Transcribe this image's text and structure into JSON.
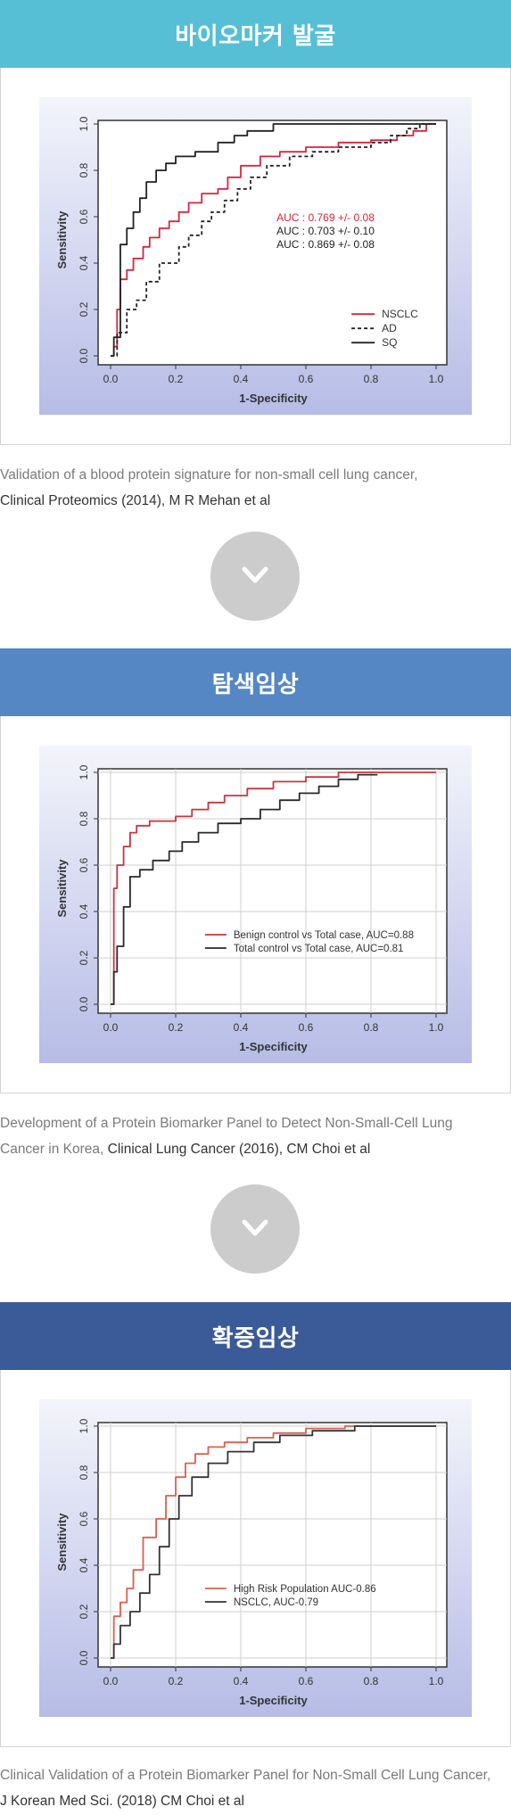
{
  "panels": [
    {
      "header": "바이오마커 발굴",
      "header_color": "#56bfd6",
      "caption_plain": "Validation of a blood protein signature for non-small cell lung cancer,",
      "caption_ref": "Clinical Proteomics (2014), M R Mehan et al",
      "chart_data": {
        "type": "line",
        "xlabel": "1-Specificity",
        "ylabel": "Sensitivity",
        "xlim": [
          0,
          1
        ],
        "ylim": [
          0,
          1
        ],
        "x_ticks": [
          "0.0",
          "0.2",
          "0.4",
          "0.6",
          "0.8",
          "1.0"
        ],
        "y_ticks": [
          "0.0",
          "0.2",
          "0.4",
          "0.6",
          "0.8",
          "1.0"
        ],
        "grid": false,
        "legend_position": "bottom-right",
        "annotations": [
          {
            "text": "AUC : 0.769 +/- 0.08",
            "color": "#d7263d"
          },
          {
            "text": "AUC : 0.703 +/- 0.10",
            "color": "#222222"
          },
          {
            "text": "AUC : 0.869 +/- 0.08",
            "color": "#222222"
          }
        ],
        "series": [
          {
            "name": "NSCLC",
            "color": "#d7263d",
            "dash": "none",
            "x": [
              0,
              0.01,
              0.01,
              0.02,
              0.02,
              0.03,
              0.03,
              0.05,
              0.05,
              0.07,
              0.07,
              0.1,
              0.1,
              0.12,
              0.12,
              0.15,
              0.15,
              0.18,
              0.18,
              0.21,
              0.21,
              0.24,
              0.24,
              0.28,
              0.28,
              0.33,
              0.33,
              0.36,
              0.36,
              0.4,
              0.4,
              0.46,
              0.46,
              0.52,
              0.52,
              0.6,
              0.6,
              0.7,
              0.7,
              0.8,
              0.8,
              0.88,
              0.88,
              0.93,
              0.93,
              0.97,
              0.97,
              1.0
            ],
            "y": [
              0,
              0,
              0.04,
              0.04,
              0.2,
              0.2,
              0.33,
              0.33,
              0.37,
              0.37,
              0.42,
              0.42,
              0.47,
              0.47,
              0.51,
              0.51,
              0.55,
              0.55,
              0.58,
              0.58,
              0.62,
              0.62,
              0.66,
              0.66,
              0.7,
              0.7,
              0.72,
              0.72,
              0.77,
              0.77,
              0.82,
              0.82,
              0.86,
              0.86,
              0.88,
              0.88,
              0.9,
              0.9,
              0.92,
              0.92,
              0.93,
              0.93,
              0.95,
              0.95,
              0.97,
              0.97,
              1.0,
              1.0
            ]
          },
          {
            "name": "AD",
            "color": "#222222",
            "dash": "4,3",
            "x": [
              0,
              0.02,
              0.02,
              0.05,
              0.05,
              0.08,
              0.08,
              0.11,
              0.11,
              0.15,
              0.15,
              0.21,
              0.21,
              0.24,
              0.24,
              0.28,
              0.28,
              0.31,
              0.31,
              0.35,
              0.35,
              0.39,
              0.39,
              0.43,
              0.43,
              0.48,
              0.48,
              0.55,
              0.55,
              0.62,
              0.62,
              0.7,
              0.7,
              0.8,
              0.8,
              0.86,
              0.86,
              0.91,
              0.91,
              0.95,
              0.95,
              1.0
            ],
            "y": [
              0,
              0,
              0.1,
              0.1,
              0.2,
              0.2,
              0.24,
              0.24,
              0.32,
              0.32,
              0.4,
              0.4,
              0.47,
              0.47,
              0.52,
              0.52,
              0.58,
              0.58,
              0.62,
              0.62,
              0.67,
              0.67,
              0.72,
              0.72,
              0.77,
              0.77,
              0.82,
              0.82,
              0.86,
              0.86,
              0.88,
              0.88,
              0.9,
              0.9,
              0.92,
              0.92,
              0.95,
              0.95,
              0.98,
              0.98,
              1.0,
              1.0
            ]
          },
          {
            "name": "SQ",
            "color": "#222222",
            "dash": "none",
            "x": [
              0,
              0.01,
              0.01,
              0.03,
              0.03,
              0.05,
              0.05,
              0.07,
              0.07,
              0.09,
              0.09,
              0.11,
              0.11,
              0.14,
              0.14,
              0.17,
              0.17,
              0.2,
              0.2,
              0.26,
              0.26,
              0.33,
              0.33,
              0.38,
              0.38,
              0.42,
              0.42,
              0.5,
              0.5,
              0.65,
              0.65,
              0.75,
              0.75,
              0.9,
              0.9,
              1.0
            ],
            "y": [
              0,
              0,
              0.08,
              0.08,
              0.48,
              0.48,
              0.55,
              0.55,
              0.62,
              0.62,
              0.68,
              0.68,
              0.75,
              0.75,
              0.8,
              0.8,
              0.83,
              0.83,
              0.86,
              0.86,
              0.88,
              0.88,
              0.92,
              0.92,
              0.95,
              0.95,
              0.97,
              0.97,
              1.0,
              1.0,
              1.0,
              1.0,
              1.0,
              1.0,
              1.0,
              1.0
            ]
          }
        ]
      }
    },
    {
      "header": "탐색임상",
      "header_color": "#5487c4",
      "caption_plain": "Development of a Protein Biomarker Panel to Detect Non-Small-Cell Lung Cancer in Korea,",
      "caption_ref": "Clinical Lung Cancer (2016), CM Choi et al",
      "chart_data": {
        "type": "line",
        "xlabel": "1-Specificity",
        "ylabel": "Sensitivity",
        "xlim": [
          0,
          1
        ],
        "ylim": [
          0,
          1
        ],
        "x_ticks": [
          "0.0",
          "0.2",
          "0.4",
          "0.6",
          "0.8",
          "1.0"
        ],
        "y_ticks": [
          "0.0",
          "0.2",
          "0.4",
          "0.6",
          "0.8",
          "1.0"
        ],
        "grid": true,
        "legend_position": "center-right",
        "annotations": [],
        "series": [
          {
            "name": "Benign control vs Total case, AUC=0.88",
            "color": "#c8353f",
            "dash": "none",
            "x": [
              0,
              0.01,
              0.01,
              0.02,
              0.02,
              0.04,
              0.04,
              0.06,
              0.06,
              0.08,
              0.08,
              0.12,
              0.12,
              0.2,
              0.2,
              0.25,
              0.25,
              0.3,
              0.3,
              0.35,
              0.35,
              0.42,
              0.42,
              0.5,
              0.5,
              0.6,
              0.6,
              0.7,
              0.7,
              0.8,
              0.8,
              0.9,
              0.9,
              1.0
            ],
            "y": [
              0,
              0,
              0.5,
              0.5,
              0.6,
              0.6,
              0.68,
              0.68,
              0.74,
              0.74,
              0.77,
              0.77,
              0.79,
              0.79,
              0.81,
              0.81,
              0.84,
              0.84,
              0.87,
              0.87,
              0.9,
              0.9,
              0.93,
              0.93,
              0.96,
              0.96,
              0.98,
              0.98,
              1.0,
              1.0,
              1.0,
              1.0,
              1.0,
              1.0
            ]
          },
          {
            "name": "Total control vs Total case, AUC=0.81",
            "color": "#2a2a2a",
            "dash": "none",
            "x": [
              0,
              0.01,
              0.01,
              0.02,
              0.02,
              0.04,
              0.04,
              0.06,
              0.06,
              0.09,
              0.09,
              0.13,
              0.13,
              0.18,
              0.18,
              0.22,
              0.22,
              0.27,
              0.27,
              0.33,
              0.33,
              0.4,
              0.4,
              0.46,
              0.46,
              0.52,
              0.52,
              0.58,
              0.58,
              0.64,
              0.64,
              0.7,
              0.7,
              0.76,
              0.76,
              0.82
            ],
            "y": [
              0,
              0,
              0.14,
              0.14,
              0.25,
              0.25,
              0.42,
              0.42,
              0.55,
              0.55,
              0.58,
              0.58,
              0.62,
              0.62,
              0.66,
              0.66,
              0.7,
              0.7,
              0.74,
              0.74,
              0.78,
              0.78,
              0.8,
              0.8,
              0.84,
              0.84,
              0.88,
              0.88,
              0.91,
              0.91,
              0.94,
              0.94,
              0.97,
              0.97,
              0.99,
              0.99
            ]
          }
        ]
      }
    },
    {
      "header": "확증임상",
      "header_color": "#3a5a98",
      "caption_plain": "Clinical Validation of a Protein Biomarker Panel for Non-Small Cell Lung Cancer,",
      "caption_ref": "J Korean Med Sci. (2018) CM Choi et al",
      "chart_data": {
        "type": "line",
        "xlabel": "1-Specificity",
        "ylabel": "Sensitivity",
        "xlim": [
          0,
          1
        ],
        "ylim": [
          0,
          1
        ],
        "x_ticks": [
          "0.0",
          "0.2",
          "0.4",
          "0.6",
          "0.8",
          "1.0"
        ],
        "y_ticks": [
          "0.0",
          "0.2",
          "0.4",
          "0.6",
          "0.8",
          "1.0"
        ],
        "grid": true,
        "legend_position": "center-right",
        "annotations": [],
        "series": [
          {
            "name": "High Risk Population AUC-0.86",
            "color": "#d9604f",
            "dash": "none",
            "x": [
              0,
              0.01,
              0.01,
              0.03,
              0.03,
              0.05,
              0.05,
              0.07,
              0.07,
              0.1,
              0.1,
              0.14,
              0.14,
              0.17,
              0.17,
              0.2,
              0.2,
              0.23,
              0.23,
              0.26,
              0.26,
              0.3,
              0.3,
              0.35,
              0.35,
              0.42,
              0.42,
              0.5,
              0.5,
              0.6,
              0.6,
              0.72,
              0.72,
              0.85,
              0.85,
              1.0
            ],
            "y": [
              0,
              0,
              0.18,
              0.18,
              0.24,
              0.24,
              0.3,
              0.3,
              0.38,
              0.38,
              0.52,
              0.52,
              0.6,
              0.6,
              0.7,
              0.7,
              0.78,
              0.78,
              0.84,
              0.84,
              0.88,
              0.88,
              0.91,
              0.91,
              0.93,
              0.93,
              0.95,
              0.95,
              0.97,
              0.97,
              0.99,
              0.99,
              1.0,
              1.0,
              1.0,
              1.0
            ]
          },
          {
            "name": "NSCLC, AUC-0.79",
            "color": "#333333",
            "dash": "none",
            "x": [
              0,
              0.01,
              0.01,
              0.03,
              0.03,
              0.06,
              0.06,
              0.09,
              0.09,
              0.12,
              0.12,
              0.15,
              0.15,
              0.18,
              0.18,
              0.21,
              0.21,
              0.25,
              0.25,
              0.3,
              0.3,
              0.36,
              0.36,
              0.44,
              0.44,
              0.52,
              0.52,
              0.62,
              0.62,
              0.75,
              0.75,
              0.88,
              0.88,
              1.0
            ],
            "y": [
              0,
              0,
              0.06,
              0.06,
              0.14,
              0.14,
              0.2,
              0.2,
              0.28,
              0.28,
              0.36,
              0.36,
              0.48,
              0.48,
              0.6,
              0.6,
              0.7,
              0.7,
              0.78,
              0.78,
              0.84,
              0.84,
              0.89,
              0.89,
              0.93,
              0.93,
              0.96,
              0.96,
              0.98,
              0.98,
              1.0,
              1.0,
              1.0,
              1.0
            ]
          }
        ]
      }
    }
  ]
}
